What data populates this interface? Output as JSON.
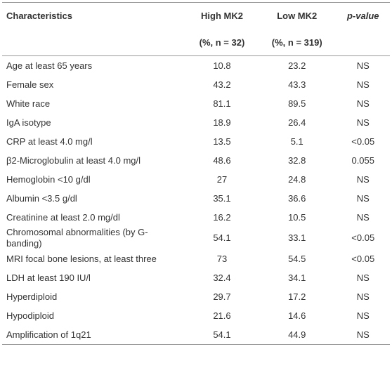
{
  "table": {
    "header": [
      "Characteristics",
      "High MK2",
      "Low MK2",
      "p-value"
    ],
    "subheader": [
      "(%, n = 32)",
      "(%, n = 319)"
    ],
    "rows": [
      [
        "Age at least 65 years",
        "10.8",
        "23.2",
        "NS"
      ],
      [
        "Female sex",
        "43.2",
        "43.3",
        "NS"
      ],
      [
        "White race",
        "81.1",
        "89.5",
        "NS"
      ],
      [
        "IgA isotype",
        "18.9",
        "26.4",
        "NS"
      ],
      [
        "CRP at least 4.0 mg/l",
        "13.5",
        "5.1",
        "<0.05"
      ],
      [
        "β2-Microglobulin at least 4.0 mg/l",
        "48.6",
        "32.8",
        "0.055"
      ],
      [
        "Hemoglobin <10 g/dl",
        "27",
        "24.8",
        "NS"
      ],
      [
        "Albumin <3.5 g/dl",
        "35.1",
        "36.6",
        "NS"
      ],
      [
        "Creatinine at least 2.0 mg/dl",
        "16.2",
        "10.5",
        "NS"
      ],
      [
        "Chromosomal abnormalities (by G-banding)",
        "54.1",
        "33.1",
        "<0.05"
      ],
      [
        "MRI focal bone lesions, at least three",
        "73",
        "54.5",
        "<0.05"
      ],
      [
        "LDH at least 190 IU/l",
        "32.4",
        "34.1",
        "NS"
      ],
      [
        "Hyperdiploid",
        "29.7",
        "17.2",
        "NS"
      ],
      [
        "Hypodiploid",
        "21.6",
        "14.6",
        "NS"
      ],
      [
        "Amplification of 1q21",
        "54.1",
        "44.9",
        "NS"
      ]
    ]
  }
}
